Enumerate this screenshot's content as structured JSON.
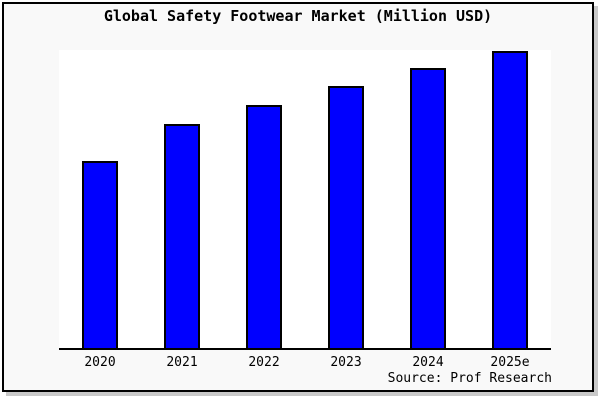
{
  "chart": {
    "title": "Global Safety Footwear Market (Million USD)",
    "source": "Source: Prof Research",
    "colors": {
      "bar_fill": "#0000FF",
      "bar_border": "#000000",
      "background": "#F9F9F9",
      "plot_background": "#FFFFFF",
      "frame": "#000000",
      "text": "#000000"
    }
  },
  "chart_data": {
    "type": "bar",
    "title": "Global Safety Footwear Market (Million USD)",
    "categories": [
      "2020",
      "2021",
      "2022",
      "2023",
      "2024",
      "2025e"
    ],
    "values": [
      63,
      75.5,
      81.9,
      88.3,
      94.3,
      100
    ],
    "values_note": "Y axis is unlabeled in the image; values are bar heights relative to the 2025e bar = 100 (estimated from pixel proportions).",
    "xlabel": "",
    "ylabel": "",
    "ylim": [
      0,
      100.3
    ],
    "grid": false,
    "legend": "none",
    "source": "Source: Prof Research"
  }
}
